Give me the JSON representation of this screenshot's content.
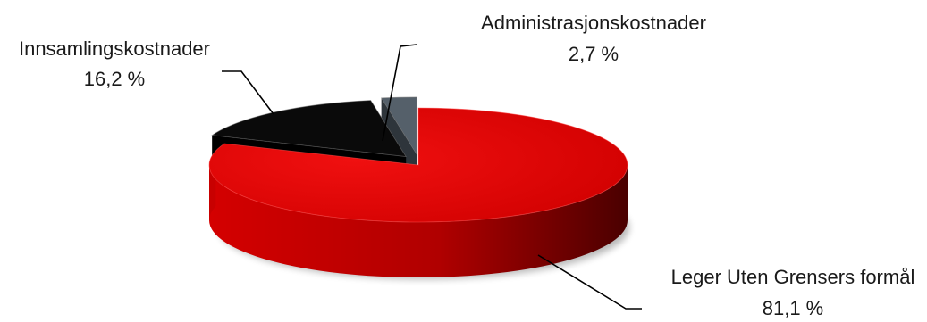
{
  "chart_data": {
    "type": "pie",
    "title": "",
    "slices": [
      {
        "name": "Leger Uten Grensers formål",
        "value": 81.1,
        "display": "81,1 %",
        "color": "#e00000"
      },
      {
        "name": "Innsamlingskostnader",
        "value": 16.2,
        "display": "16,2 %",
        "color": "#0a0a0a"
      },
      {
        "name": "Administrasjonskostnader",
        "value": 2.7,
        "display": "2,7 %",
        "color": "#55606a"
      }
    ],
    "exploded": true,
    "three_d": true,
    "legend": "none",
    "labels": "outside with leader lines"
  }
}
